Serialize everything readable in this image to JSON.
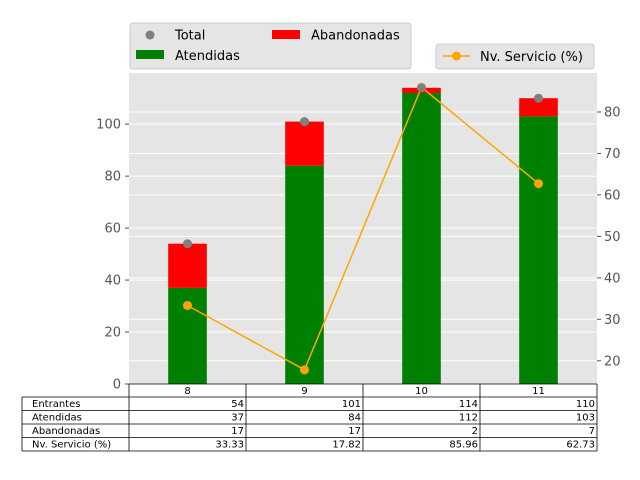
{
  "chart_data": {
    "type": "bar",
    "categories": [
      "8",
      "9",
      "10",
      "11"
    ],
    "series": [
      {
        "name": "Atendidas",
        "values": [
          37,
          84,
          112,
          103
        ],
        "color": "#008000",
        "kind": "stacked-bar"
      },
      {
        "name": "Abandonadas",
        "values": [
          17,
          17,
          2,
          7
        ],
        "color": "#ff0000",
        "kind": "stacked-bar"
      },
      {
        "name": "Total",
        "values": [
          54,
          101,
          114,
          110
        ],
        "color": "#808080",
        "kind": "scatter"
      },
      {
        "name": "Nv. Servicio (%)",
        "values": [
          33.33,
          17.82,
          85.96,
          62.73
        ],
        "color": "#ffa500",
        "kind": "line",
        "axis": "right"
      }
    ],
    "ylim_left": [
      0,
      119.7
    ],
    "yticks_left": [
      "0",
      "20",
      "40",
      "60",
      "80",
      "100"
    ],
    "ylim_right": [
      14.4,
      89.4
    ],
    "yticks_right": [
      "20",
      "30",
      "40",
      "50",
      "60",
      "70",
      "80"
    ],
    "grid": true,
    "legend_left": [
      "Total",
      "Atendidas",
      "Abandonadas"
    ],
    "legend_right": [
      "Nv. Servicio (%)"
    ],
    "table": {
      "columns": [
        "8",
        "9",
        "10",
        "11"
      ],
      "rows": [
        {
          "label": "Entrantes",
          "values": [
            "54",
            "101",
            "114",
            "110"
          ]
        },
        {
          "label": "Atendidas",
          "values": [
            "37",
            "84",
            "112",
            "103"
          ]
        },
        {
          "label": "Abandonadas",
          "values": [
            "17",
            "17",
            "2",
            "7"
          ]
        },
        {
          "label": "Nv. Servicio (%)",
          "values": [
            "33.33",
            "17.82",
            "85.96",
            "62.73"
          ]
        }
      ]
    }
  }
}
